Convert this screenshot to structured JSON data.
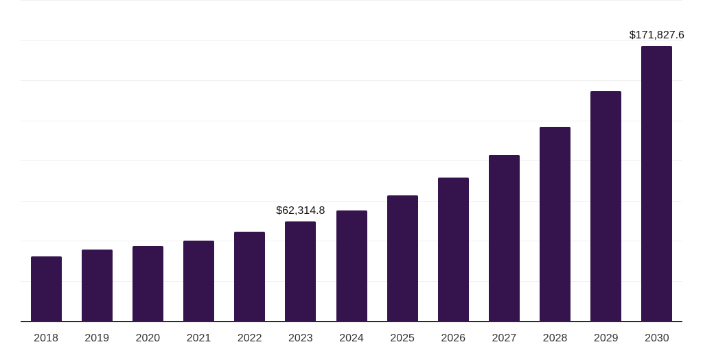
{
  "chart": {
    "background_color": "#ffffff",
    "bar_color": "#35134d",
    "gridline_color": "#f0f0f0",
    "axis_line_color": "#2b2b2b",
    "tick_label_color": "#333333",
    "value_label_color": "#111111"
  },
  "chart_data": {
    "type": "bar",
    "title": "",
    "xlabel": "",
    "ylabel": "",
    "categories": [
      "2018",
      "2019",
      "2020",
      "2021",
      "2022",
      "2023",
      "2024",
      "2025",
      "2026",
      "2027",
      "2028",
      "2029",
      "2030"
    ],
    "values": [
      40600,
      44900,
      47000,
      50400,
      56000,
      62314.8,
      69200,
      78600,
      89700,
      103800,
      121400,
      143600,
      171827.6
    ],
    "value_labels": [
      "",
      "",
      "",
      "",
      "",
      "$62,314.8",
      "",
      "",
      "",
      "",
      "",
      "",
      "$171,827.6"
    ],
    "ylim": [
      0,
      200000
    ],
    "grid_step": 25000,
    "grid": "horizontal",
    "y_tick_labels_shown": false,
    "legend_position": "none"
  }
}
